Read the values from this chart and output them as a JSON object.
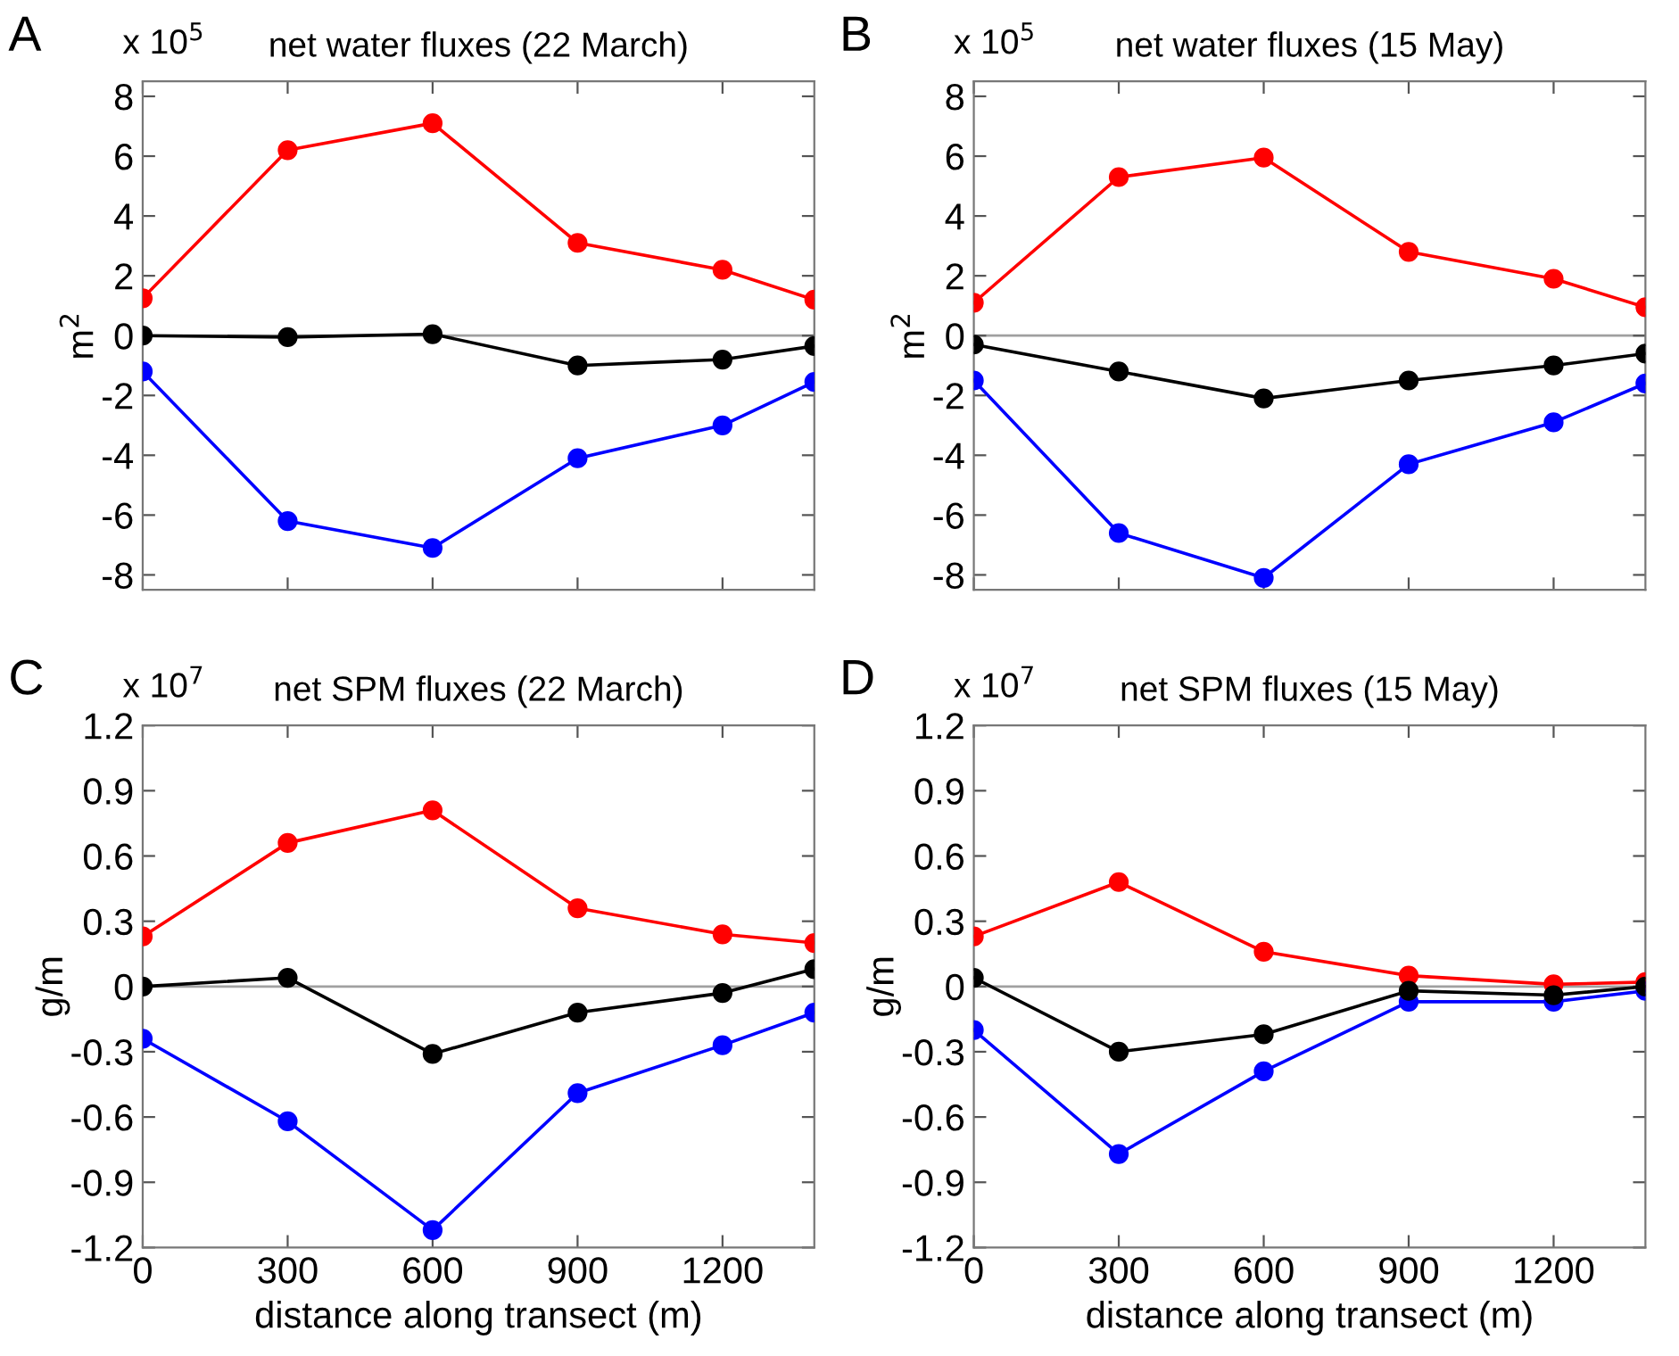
{
  "chart_data": [
    {
      "type": "line",
      "title": "net water fluxes (22 March)",
      "ylabel": "m$^{2}$",
      "annotations": [
        "A",
        "x 10$^{5}$"
      ],
      "x": [
        0,
        300,
        600,
        900,
        1200,
        1390
      ],
      "xlim": [
        0,
        1390
      ],
      "xticks": [
        0,
        300,
        600,
        900,
        1200
      ],
      "ylim": [
        -8.5,
        8.5
      ],
      "yticks": [
        -8,
        -6,
        -4,
        -2,
        0,
        2,
        4,
        6,
        8
      ],
      "tick_labels": "y",
      "marker": "circle",
      "line_style": "solid",
      "grid": false,
      "legend": false,
      "ref_lines": [
        {
          "axis": "y",
          "value": 0,
          "color": "#a0a0a0"
        }
      ],
      "series": [
        {
          "color": "#ff0000",
          "values": [
            1.25,
            6.2,
            7.1,
            3.1,
            2.2,
            1.2
          ]
        },
        {
          "color": "#000000",
          "values": [
            0,
            -0.05,
            0.05,
            -1.0,
            -0.8,
            -0.35
          ]
        },
        {
          "color": "#0000ff",
          "values": [
            -1.2,
            -6.2,
            -7.1,
            -4.1,
            -3.0,
            -1.55
          ]
        }
      ]
    },
    {
      "type": "line",
      "title": "net water fluxes (15 May)",
      "ylabel": "m$^{2}$",
      "annotations": [
        "B",
        "x 10$^{5}$"
      ],
      "x": [
        0,
        300,
        600,
        900,
        1200,
        1390
      ],
      "xlim": [
        0,
        1390
      ],
      "xticks": [
        0,
        300,
        600,
        900,
        1200
      ],
      "ylim": [
        -8.5,
        8.5
      ],
      "yticks": [
        -8,
        -6,
        -4,
        -2,
        0,
        2,
        4,
        6,
        8
      ],
      "tick_labels": "y",
      "marker": "circle",
      "line_style": "solid",
      "grid": false,
      "legend": false,
      "ref_lines": [
        {
          "axis": "y",
          "value": 0,
          "color": "#a0a0a0"
        }
      ],
      "series": [
        {
          "color": "#ff0000",
          "values": [
            1.1,
            5.3,
            5.95,
            2.8,
            1.9,
            0.95
          ]
        },
        {
          "color": "#000000",
          "values": [
            -0.3,
            -1.2,
            -2.1,
            -1.5,
            -1.0,
            -0.6
          ]
        },
        {
          "color": "#0000ff",
          "values": [
            -1.5,
            -6.6,
            -8.1,
            -4.3,
            -2.9,
            -1.6
          ]
        }
      ]
    },
    {
      "type": "line",
      "title": "net SPM fluxes (22 March)",
      "xlabel": "distance along transect (m)",
      "ylabel": "g/m",
      "annotations": [
        "C",
        "x 10$^{7}$"
      ],
      "x": [
        0,
        300,
        600,
        900,
        1200,
        1390
      ],
      "xlim": [
        0,
        1390
      ],
      "xticks": [
        0,
        300,
        600,
        900,
        1200
      ],
      "ylim": [
        -1.2,
        1.2
      ],
      "yticks": [
        -1.2,
        -0.9,
        -0.6,
        -0.3,
        0,
        0.3,
        0.6,
        0.9,
        1.2
      ],
      "marker": "circle",
      "line_style": "solid",
      "grid": false,
      "legend": false,
      "ref_lines": [
        {
          "axis": "y",
          "value": 0,
          "color": "#a0a0a0"
        }
      ],
      "series": [
        {
          "color": "#ff0000",
          "values": [
            0.23,
            0.66,
            0.81,
            0.36,
            0.24,
            0.2
          ]
        },
        {
          "color": "#000000",
          "values": [
            0,
            0.04,
            -0.31,
            -0.12,
            -0.03,
            0.08
          ]
        },
        {
          "color": "#0000ff",
          "values": [
            -0.24,
            -0.62,
            -1.12,
            -0.49,
            -0.27,
            -0.12
          ]
        }
      ]
    },
    {
      "type": "line",
      "title": "net SPM fluxes (15 May)",
      "xlabel": "distance along transect (m)",
      "ylabel": "g/m",
      "annotations": [
        "D",
        "x 10$^{7}$"
      ],
      "x": [
        0,
        300,
        600,
        900,
        1200,
        1390
      ],
      "xlim": [
        0,
        1390
      ],
      "xticks": [
        0,
        300,
        600,
        900,
        1200
      ],
      "ylim": [
        -1.2,
        1.2
      ],
      "yticks": [
        -1.2,
        -0.9,
        -0.6,
        -0.3,
        0,
        0.3,
        0.6,
        0.9,
        1.2
      ],
      "marker": "circle",
      "line_style": "solid",
      "grid": false,
      "legend": false,
      "ref_lines": [
        {
          "axis": "y",
          "value": 0,
          "color": "#a0a0a0"
        }
      ],
      "series": [
        {
          "color": "#ff0000",
          "values": [
            0.23,
            0.48,
            0.16,
            0.05,
            0.01,
            0.02
          ]
        },
        {
          "color": "#0000ff",
          "values": [
            -0.2,
            -0.77,
            -0.39,
            -0.07,
            -0.07,
            -0.02
          ]
        },
        {
          "color": "#000000",
          "values": [
            0.04,
            -0.3,
            -0.22,
            -0.02,
            -0.04,
            0.0
          ]
        }
      ]
    }
  ]
}
